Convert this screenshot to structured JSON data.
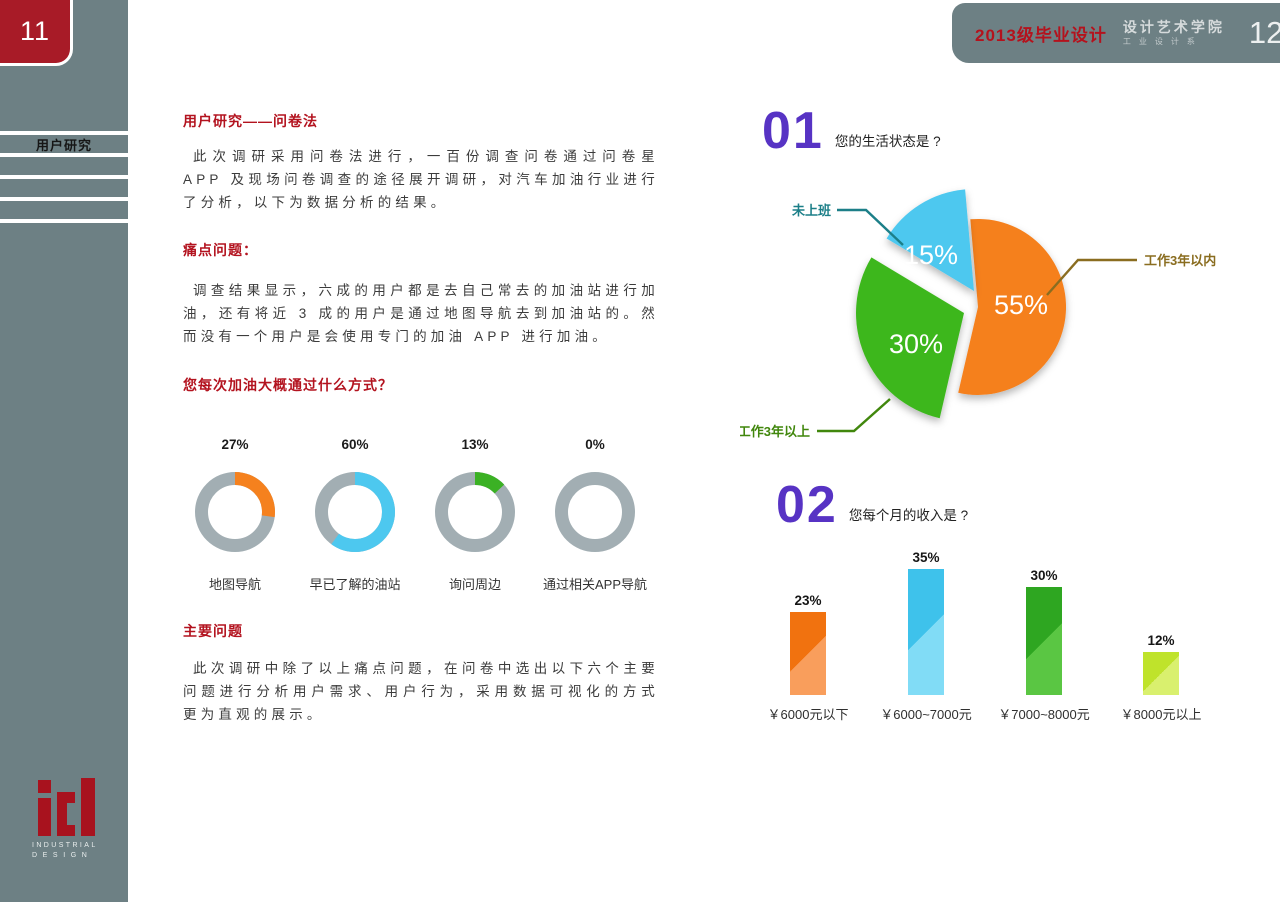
{
  "page": {
    "left_page_number": "11",
    "right_page_number": "12",
    "sidebar_label": "用户研究",
    "header": {
      "title": "2013级毕业设计",
      "school_line1": "设计艺术学院",
      "school_line2": "工业设计系"
    },
    "logo": {
      "line1": "INDUSTRIAL",
      "line2": "DESIGN"
    }
  },
  "article": {
    "heading1": "用户研究——问卷法",
    "para1": "此次调研采用问卷法进行，一百份调查问卷通过问卷星 APP 及现场问卷调查的途径展开调研，对汽车加油行业进行了分析，以下为数据分析的结果。",
    "heading2": "痛点问题：",
    "para2": "调查结果显示，六成的用户都是去自己常去的加油站进行加油，还有将近 3 成的用户是通过地图导航去到加油站的。然而没有一个用户是会使用专门的加油 APP 进行加油。",
    "heading3": "您每次加油大概通过什么方式？",
    "heading4": "主要问题",
    "para3": "此次调研中除了以上痛点问题，在问卷中选出以下六个主要问题进行分析用户需求、用户行为，采用数据可视化的方式更为直观的展示。"
  },
  "chart_data": [
    {
      "type": "donut",
      "title": "您每次加油大概通过什么方式？",
      "track_color": "#a2aeb3",
      "items": [
        {
          "label": "地图导航",
          "value": 27,
          "color": "#f5811e"
        },
        {
          "label": "早已了解的油站",
          "value": 60,
          "color": "#4dc8ef"
        },
        {
          "label": "询问周边",
          "value": 13,
          "color": "#3bb124"
        },
        {
          "label": "通过相关APP导航",
          "value": 0,
          "color": "#a2aeb3"
        }
      ]
    },
    {
      "type": "pie",
      "number": "01",
      "title": "您的生活状态是 ?",
      "start_angle": -5,
      "slices": [
        {
          "label": "工作3年以内",
          "value": 55,
          "color": "#f5801f",
          "label_color": "#8a6d20"
        },
        {
          "label": "工作3年以上",
          "value": 30,
          "color": "#3eb71f",
          "label_color": "#41870d"
        },
        {
          "label": "未上班",
          "value": 15,
          "color": "#4dc8ef",
          "label_color": "#1c7f88"
        }
      ]
    },
    {
      "type": "bar",
      "number": "02",
      "title": "您每个月的收入是 ?",
      "categories": [
        "￥6000元以下",
        "￥6000~7000元",
        "￥7000~8000元",
        "￥8000元以上"
      ],
      "values": [
        23,
        35,
        30,
        12
      ],
      "ylim": [
        0,
        40
      ],
      "colors": [
        [
          "#f1720f",
          "#f99e5c"
        ],
        [
          "#3ec2eb",
          "#81dcf6"
        ],
        [
          "#2ea621",
          "#5ac643"
        ],
        [
          "#bfe32b",
          "#d9f06e"
        ]
      ]
    }
  ]
}
